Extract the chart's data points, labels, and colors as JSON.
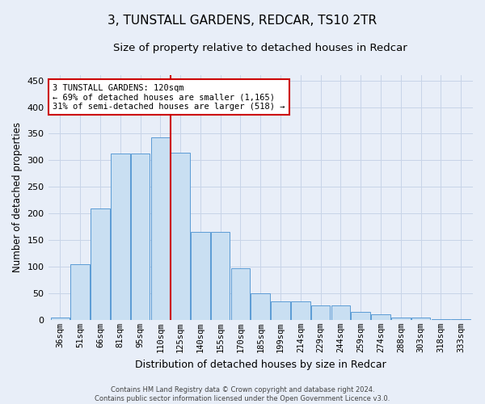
{
  "title": "3, TUNSTALL GARDENS, REDCAR, TS10 2TR",
  "subtitle": "Size of property relative to detached houses in Redcar",
  "xlabel": "Distribution of detached houses by size in Redcar",
  "ylabel": "Number of detached properties",
  "categories": [
    "36sqm",
    "51sqm",
    "66sqm",
    "81sqm",
    "95sqm",
    "110sqm",
    "125sqm",
    "140sqm",
    "155sqm",
    "170sqm",
    "185sqm",
    "199sqm",
    "214sqm",
    "229sqm",
    "244sqm",
    "259sqm",
    "274sqm",
    "288sqm",
    "303sqm",
    "318sqm",
    "333sqm"
  ],
  "values": [
    5,
    105,
    210,
    313,
    313,
    343,
    315,
    165,
    165,
    97,
    50,
    35,
    35,
    27,
    27,
    15,
    10,
    5,
    5,
    2,
    1
  ],
  "bar_color": "#c9dff2",
  "bar_edge_color": "#5b9bd5",
  "vline_index": 6,
  "vline_color": "#cc0000",
  "annotation_text": "3 TUNSTALL GARDENS: 120sqm\n← 69% of detached houses are smaller (1,165)\n31% of semi-detached houses are larger (518) →",
  "annotation_box_color": "#ffffff",
  "annotation_box_edge": "#cc0000",
  "grid_color": "#c8d4e8",
  "background_color": "#e8eef8",
  "plot_background": "#e8eef8",
  "footer_line1": "Contains HM Land Registry data © Crown copyright and database right 2024.",
  "footer_line2": "Contains public sector information licensed under the Open Government Licence v3.0.",
  "ylim": [
    0,
    460
  ],
  "yticks": [
    0,
    50,
    100,
    150,
    200,
    250,
    300,
    350,
    400,
    450
  ],
  "title_fontsize": 11,
  "subtitle_fontsize": 9.5,
  "tick_fontsize": 7.5,
  "ylabel_fontsize": 8.5,
  "xlabel_fontsize": 9,
  "footer_fontsize": 6,
  "annotation_fontsize": 7.5
}
